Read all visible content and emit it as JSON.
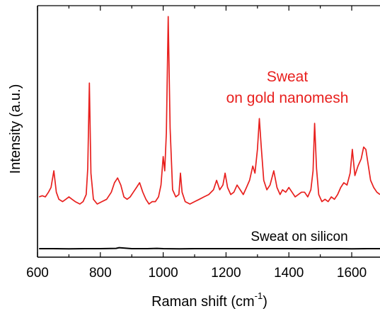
{
  "chart_data": {
    "type": "line",
    "xlabel": "Raman shift (cm",
    "xlabel_superscript": "-1",
    "xlabel_close": ")",
    "ylabel": "Intensity (a.u.)",
    "xlim": [
      600,
      1690
    ],
    "ylim": [
      0,
      1.0
    ],
    "x_ticks": [
      600,
      800,
      1000,
      1200,
      1400,
      1600
    ],
    "y_ticks_shown": false,
    "grid": false,
    "legend": "none",
    "annotations": [
      {
        "text": "Sweat",
        "series": "gold",
        "color": "#e8201e"
      },
      {
        "text": "on gold nanomesh",
        "series": "gold",
        "color": "#e8201e"
      },
      {
        "text": "Sweat on silicon",
        "series": "silicon",
        "color": "#000000"
      }
    ],
    "series": [
      {
        "key": "gold",
        "color": "#e8201e",
        "x": [
          605,
          615,
          625,
          635,
          643,
          652,
          660,
          668,
          680,
          690,
          700,
          710,
          720,
          735,
          745,
          755,
          760,
          765,
          770,
          778,
          790,
          805,
          820,
          835,
          845,
          855,
          865,
          875,
          885,
          895,
          905,
          915,
          925,
          935,
          945,
          955,
          965,
          975,
          985,
          993,
          1000,
          1005,
          1010,
          1016,
          1022,
          1030,
          1040,
          1050,
          1055,
          1060,
          1070,
          1085,
          1100,
          1115,
          1130,
          1145,
          1160,
          1170,
          1180,
          1190,
          1197,
          1205,
          1215,
          1225,
          1235,
          1245,
          1255,
          1265,
          1275,
          1285,
          1292,
          1300,
          1306,
          1312,
          1320,
          1330,
          1340,
          1352,
          1362,
          1372,
          1380,
          1390,
          1400,
          1410,
          1420,
          1430,
          1440,
          1450,
          1460,
          1470,
          1477,
          1482,
          1488,
          1495,
          1505,
          1515,
          1525,
          1535,
          1545,
          1555,
          1565,
          1575,
          1585,
          1595,
          1602,
          1610,
          1620,
          1630,
          1638,
          1645,
          1652,
          1660,
          1670,
          1680,
          1690
        ],
        "y": [
          0.23,
          0.235,
          0.23,
          0.25,
          0.27,
          0.34,
          0.25,
          0.22,
          0.21,
          0.22,
          0.23,
          0.22,
          0.21,
          0.2,
          0.21,
          0.24,
          0.35,
          0.71,
          0.33,
          0.22,
          0.2,
          0.21,
          0.22,
          0.25,
          0.29,
          0.31,
          0.28,
          0.23,
          0.22,
          0.23,
          0.25,
          0.27,
          0.29,
          0.25,
          0.22,
          0.2,
          0.21,
          0.21,
          0.23,
          0.28,
          0.4,
          0.34,
          0.5,
          0.99,
          0.52,
          0.26,
          0.23,
          0.24,
          0.33,
          0.25,
          0.21,
          0.2,
          0.21,
          0.22,
          0.23,
          0.24,
          0.26,
          0.3,
          0.26,
          0.28,
          0.33,
          0.27,
          0.24,
          0.25,
          0.28,
          0.26,
          0.24,
          0.27,
          0.3,
          0.36,
          0.33,
          0.43,
          0.56,
          0.44,
          0.3,
          0.26,
          0.28,
          0.34,
          0.27,
          0.24,
          0.26,
          0.25,
          0.27,
          0.25,
          0.23,
          0.24,
          0.25,
          0.25,
          0.23,
          0.26,
          0.34,
          0.54,
          0.35,
          0.24,
          0.21,
          0.22,
          0.21,
          0.23,
          0.22,
          0.24,
          0.27,
          0.29,
          0.28,
          0.33,
          0.43,
          0.32,
          0.36,
          0.39,
          0.44,
          0.43,
          0.37,
          0.3,
          0.27,
          0.25,
          0.24
        ]
      },
      {
        "key": "silicon",
        "color": "#000000",
        "x": [
          605,
          650,
          700,
          750,
          800,
          850,
          860,
          900,
          950,
          980,
          1000,
          1050,
          1100,
          1150,
          1200,
          1250,
          1300,
          1350,
          1400,
          1450,
          1500,
          1550,
          1600,
          1650,
          1690
        ],
        "y": [
          0.012,
          0.012,
          0.011,
          0.012,
          0.012,
          0.013,
          0.016,
          0.012,
          0.012,
          0.013,
          0.012,
          0.011,
          0.012,
          0.012,
          0.012,
          0.012,
          0.012,
          0.012,
          0.012,
          0.011,
          0.012,
          0.012,
          0.011,
          0.012,
          0.012
        ]
      }
    ]
  }
}
